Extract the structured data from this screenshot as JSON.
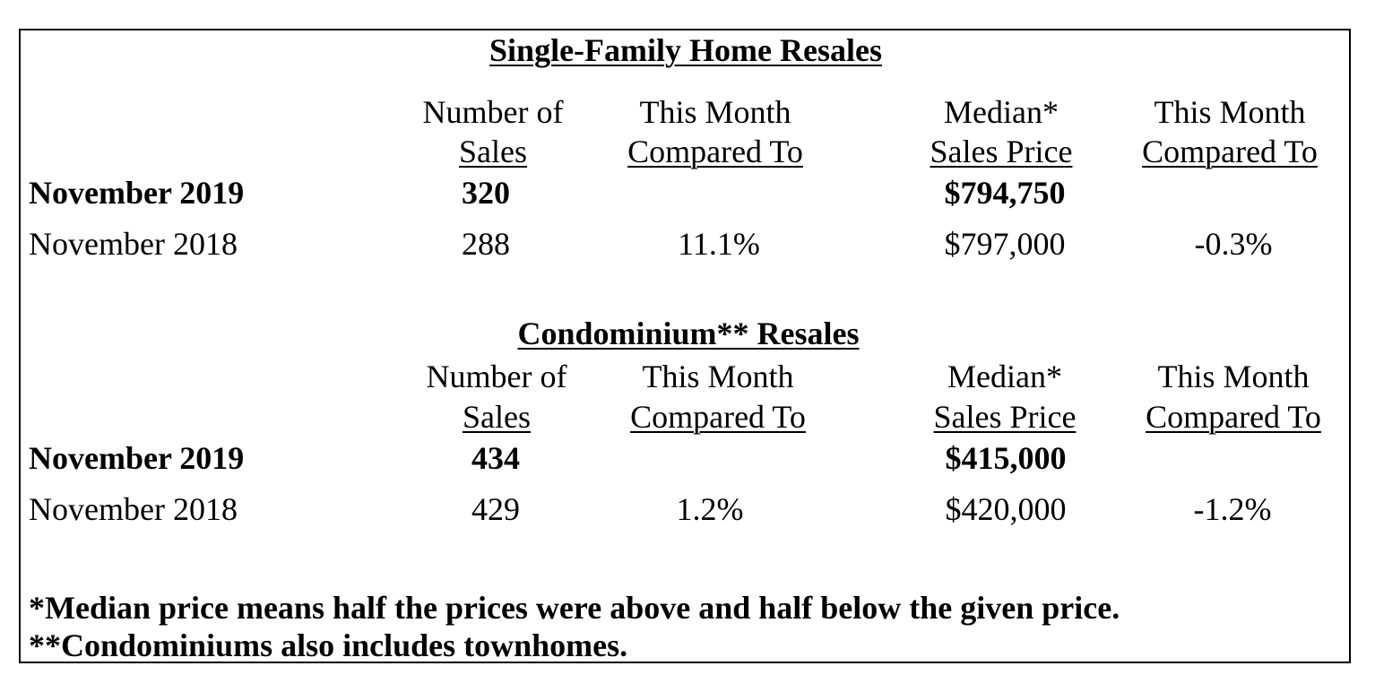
{
  "single_family": {
    "title": "Single-Family Home Resales",
    "headers": {
      "num_sales_line1": "Number of",
      "num_sales_line2": "Sales",
      "compare1_line1": "This Month",
      "compare1_line2": "Compared To",
      "median_line1": "Median*",
      "median_line2": "Sales Price",
      "compare2_line1": "This Month",
      "compare2_line2": "Compared To"
    },
    "rows": [
      {
        "period": "November 2019",
        "sales": "320",
        "sales_change": "",
        "median_price": "$794,750",
        "price_change": ""
      },
      {
        "period": "November 2018",
        "sales": "288",
        "sales_change": "11.1%",
        "median_price": "$797,000",
        "price_change": "-0.3%"
      }
    ]
  },
  "condo": {
    "title": "Condominium** Resales",
    "headers": {
      "num_sales_line1": "Number of",
      "num_sales_line2": "Sales",
      "compare1_line1": "This Month",
      "compare1_line2": "Compared To",
      "median_line1": "Median*",
      "median_line2": "Sales Price",
      "compare2_line1": "This Month",
      "compare2_line2": "Compared To"
    },
    "rows": [
      {
        "period": "November 2019",
        "sales": "434",
        "sales_change": "",
        "median_price": "$415,000",
        "price_change": ""
      },
      {
        "period": "November 2018",
        "sales": "429",
        "sales_change": "1.2%",
        "median_price": "$420,000",
        "price_change": "-1.2%"
      }
    ]
  },
  "footnotes": [
    "*Median price means half the prices were above and half below the given price.",
    "**Condominiums also includes townhomes."
  ]
}
